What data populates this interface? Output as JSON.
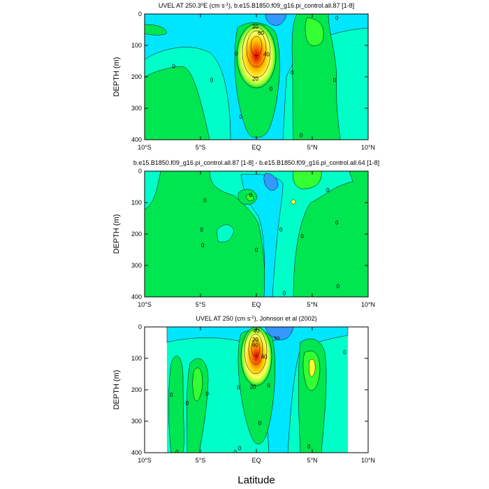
{
  "chart_data": [
    {
      "type": "heatmap",
      "title": "UVEL AT 250.3°E (cm s⁻¹), b.e15.B1850.f09_g16.pi_control.all.87 [1-8]",
      "title_parts": {
        "pre": "UVEL AT 250.3",
        "deg": "o",
        "mid": "E (cm s",
        "sup": "-1",
        "post": "), b.e15.B1850.f09_g16.pi_control.all.87 [1-8]"
      },
      "ylabel": "DEPTH (m)",
      "xlim": [
        -10,
        10
      ],
      "ylim": [
        400,
        0
      ],
      "xticks": [
        -10,
        -5,
        0,
        5,
        10
      ],
      "xtick_labels": [
        "10°S",
        "5°S",
        "EQ",
        "5°N",
        "10°N"
      ],
      "yticks": [
        0,
        100,
        200,
        300,
        400
      ],
      "ytick_labels": [
        "0",
        "100",
        "200",
        "300",
        "400"
      ],
      "jet": {
        "peak": 100,
        "center_lat": 0,
        "center_depth": 100
      },
      "contour_labels": [
        {
          "text": "20",
          "lat": -0.1,
          "depth": 40
        },
        {
          "text": "60",
          "lat": 0.4,
          "depth": 60
        },
        {
          "text": "40",
          "lat": 0.9,
          "depth": 128
        },
        {
          "text": "20",
          "lat": -0.1,
          "depth": 205
        },
        {
          "text": "0",
          "lat": -7.4,
          "depth": 165
        },
        {
          "text": "0",
          "lat": -4.0,
          "depth": 210
        },
        {
          "text": "0",
          "lat": -1.8,
          "depth": 125
        },
        {
          "text": "0",
          "lat": -1.4,
          "depth": 327
        },
        {
          "text": "0",
          "lat": 1.3,
          "depth": 238
        },
        {
          "text": "0",
          "lat": 3.2,
          "depth": 185
        },
        {
          "text": "0",
          "lat": 4.0,
          "depth": 385
        },
        {
          "text": "0",
          "lat": 7.0,
          "depth": 210
        },
        {
          "text": "0",
          "lat": 7.2,
          "depth": 12
        }
      ]
    },
    {
      "type": "heatmap",
      "title": "b.e15.B1850.f09_g16.pi_control.all.87 [1-8] - b.e15.B1850.f09_g16.pi_control.all.64 [1-8]",
      "ylabel": "DEPTH (m)",
      "xlim": [
        -10,
        10
      ],
      "ylim": [
        400,
        0
      ],
      "xticks": [
        -10,
        -5,
        0,
        5,
        10
      ],
      "xtick_labels": [
        "10°S",
        "5°S",
        "EQ",
        "5°N",
        "10°N"
      ],
      "yticks": [
        0,
        100,
        200,
        300,
        400
      ],
      "ytick_labels": [
        "0",
        "100",
        "200",
        "300",
        "400"
      ],
      "contour_labels": [
        {
          "text": "0",
          "lat": -4.6,
          "depth": 92
        },
        {
          "text": "0",
          "lat": -4.8,
          "depth": 235
        },
        {
          "text": "0",
          "lat": -4.9,
          "depth": 185
        },
        {
          "text": "0",
          "lat": -0.5,
          "depth": 75
        },
        {
          "text": "0",
          "lat": 0.0,
          "depth": 250
        },
        {
          "text": "0",
          "lat": 2.2,
          "depth": 185
        },
        {
          "text": "0",
          "lat": 4.1,
          "depth": 207
        },
        {
          "text": "0",
          "lat": 6.4,
          "depth": 60
        },
        {
          "text": "0",
          "lat": 7.2,
          "depth": 163
        },
        {
          "text": "0",
          "lat": 7.3,
          "depth": 365
        },
        {
          "text": "0",
          "lat": 2.5,
          "depth": 388
        }
      ]
    },
    {
      "type": "heatmap",
      "title": "UVEL AT 250 (cm s⁻¹), Johnson et al (2002)",
      "title_parts": {
        "pre": "UVEL AT 250 (cm s",
        "sup": "-1",
        "post": "), Johnson et al (2002)"
      },
      "ylabel": "DEPTH (m)",
      "xlabel": "Latitude",
      "xlim": [
        -10,
        10
      ],
      "ylim": [
        400,
        0
      ],
      "xticks": [
        -10,
        -5,
        0,
        5,
        10
      ],
      "xtick_labels": [
        "10°S",
        "5°S",
        "EQ",
        "5°N",
        "10°N"
      ],
      "yticks": [
        0,
        100,
        200,
        300,
        400
      ],
      "ytick_labels": [
        "0",
        "100",
        "200",
        "300",
        "400"
      ],
      "data_lat_range": [
        -8,
        8.2
      ],
      "jet": {
        "peak": 100,
        "center_lat": 0,
        "center_depth": 85
      },
      "contour_labels": [
        {
          "text": "40",
          "lat": 0.0,
          "depth": 12
        },
        {
          "text": "20",
          "lat": -0.1,
          "depth": 40
        },
        {
          "text": "60",
          "lat": -0.1,
          "depth": 57
        },
        {
          "text": "30",
          "lat": 1.8,
          "depth": 37
        },
        {
          "text": "40",
          "lat": 0.7,
          "depth": 94
        },
        {
          "text": "20",
          "lat": -0.3,
          "depth": 190
        },
        {
          "text": "0",
          "lat": -7.6,
          "depth": 215
        },
        {
          "text": "0",
          "lat": -6.2,
          "depth": 242
        },
        {
          "text": "0",
          "lat": -4.4,
          "depth": 212
        },
        {
          "text": "0",
          "lat": -1.6,
          "depth": 192
        },
        {
          "text": "0",
          "lat": 1.1,
          "depth": 185
        },
        {
          "text": "0",
          "lat": 0.3,
          "depth": 305
        },
        {
          "text": "0",
          "lat": -1.5,
          "depth": 385
        },
        {
          "text": "0",
          "lat": 4.7,
          "depth": 380
        },
        {
          "text": "0",
          "lat": 7.9,
          "depth": 80
        },
        {
          "text": "0",
          "lat": -7.1,
          "depth": 398
        },
        {
          "text": "0",
          "lat": -1.9,
          "depth": 398
        }
      ]
    }
  ]
}
